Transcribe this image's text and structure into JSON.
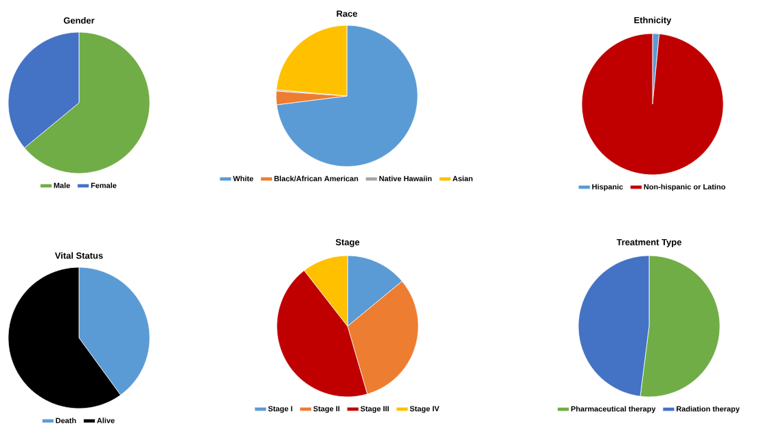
{
  "chart_data": [
    {
      "type": "pie",
      "title": "Gender",
      "categories": [
        "Male",
        "Female"
      ],
      "values": [
        64,
        36
      ],
      "colors": [
        "#70ad47",
        "#4472c4"
      ],
      "legend": "bottom"
    },
    {
      "type": "pie",
      "title": "Race",
      "categories": [
        "White",
        "Black/African American",
        "Native Hawaiin",
        "Asian"
      ],
      "values": [
        73,
        3.1,
        0.3,
        23.6
      ],
      "colors": [
        "#5b9bd5",
        "#ed7d31",
        "#a5a5a5",
        "#ffc000"
      ],
      "legend": "bottom"
    },
    {
      "type": "pie",
      "title": "Ethnicity",
      "categories": [
        "Hispanic",
        "Non-hispanic or Latino"
      ],
      "values": [
        1.5,
        98.5
      ],
      "colors": [
        "#5b9bd5",
        "#c00000"
      ],
      "legend": "bottom"
    },
    {
      "type": "pie",
      "title": "Vital Status",
      "categories": [
        "Death",
        "Alive"
      ],
      "values": [
        40,
        60
      ],
      "colors": [
        "#5b9bd5",
        "#000000"
      ],
      "legend": "bottom"
    },
    {
      "type": "pie",
      "title": "Stage",
      "categories": [
        "Stage I",
        "Stage II",
        "Stage III",
        "Stage IV"
      ],
      "values": [
        14,
        31.5,
        44,
        10.5
      ],
      "colors": [
        "#5b9bd5",
        "#ed7d31",
        "#c00000",
        "#ffc000"
      ],
      "legend": "bottom"
    },
    {
      "type": "pie",
      "title": "Treatment Type",
      "categories": [
        "Pharmaceutical therapy",
        "Radiation therapy"
      ],
      "values": [
        52,
        48
      ],
      "colors": [
        "#70ad47",
        "#4472c4"
      ],
      "legend": "bottom"
    }
  ]
}
